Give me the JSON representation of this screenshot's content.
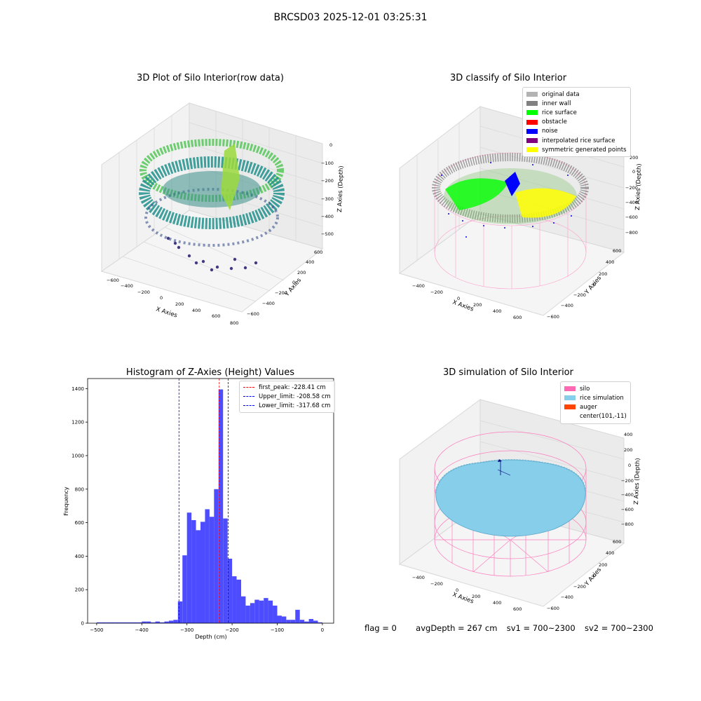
{
  "suptitle": "BRCSD03 2025-12-01 03:25:31",
  "status": {
    "flag": "flag = 0",
    "avg_depth": "avgDepth = 267 cm",
    "sv1": "sv1 = 700~2300",
    "sv2": "sv2 = 700~2300"
  },
  "chart_data": [
    {
      "type": "scatter",
      "projection": "3d",
      "title": "3D Plot of Silo Interior(row data)",
      "xlabel": "X Axies",
      "ylabel": "Y Axies",
      "zlabel": "Z Axies (Depth)",
      "x_ticks": [
        "−600",
        "−400",
        "−200",
        "0",
        "200",
        "400",
        "600",
        "800"
      ],
      "y_ticks": [
        "−600",
        "−400",
        "−200",
        "0",
        "200",
        "400",
        "600"
      ],
      "z_ticks": [
        "0",
        "−100",
        "−200",
        "−300",
        "−400",
        "−500"
      ],
      "xlim": [
        -600,
        800
      ],
      "ylim": [
        -650,
        650
      ],
      "zlim": [
        -520,
        0
      ],
      "colormap": "viridis",
      "grid": true
    },
    {
      "type": "scatter",
      "projection": "3d",
      "title": "3D classify of Silo Interior",
      "xlabel": "X Axies",
      "ylabel": "Y Axies",
      "zlabel": "Z Axies (Depth)",
      "x_ticks": [
        "−400",
        "−200",
        "0",
        "200",
        "400",
        "600"
      ],
      "y_ticks": [
        "−600",
        "−400",
        "−200",
        "0",
        "200",
        "400",
        "600"
      ],
      "z_ticks": [
        "200",
        "0",
        "−200",
        "−400",
        "−600",
        "−800"
      ],
      "legend_position": "top-right",
      "legend": [
        {
          "label": "original data",
          "color": "#b3b3b3"
        },
        {
          "label": "inner wall",
          "color": "#808080"
        },
        {
          "label": "rice surface",
          "color": "#00ff00"
        },
        {
          "label": "obstacle",
          "color": "#ff0000"
        },
        {
          "label": "noise",
          "color": "#0000ff"
        },
        {
          "label": "interpolated rice surface",
          "color": "#800080"
        },
        {
          "label": "symmetric generated points",
          "color": "#ffff00"
        }
      ],
      "grid": true
    },
    {
      "type": "bar",
      "title": "Histogram of Z-Axies (Height) Values",
      "xlabel": "Depth (cm)",
      "ylabel": "Frequency",
      "xlim": [
        -520,
        25
      ],
      "ylim": [
        0,
        1460
      ],
      "x_ticks": [
        -500,
        -400,
        -300,
        -200,
        -100,
        0
      ],
      "y_ticks": [
        0,
        200,
        400,
        600,
        800,
        1000,
        1200,
        1400
      ],
      "bin_width": 10,
      "bar_color": "#4d4dff",
      "bins": [
        {
          "x": -500,
          "y": 5
        },
        {
          "x": -490,
          "y": 5
        },
        {
          "x": -480,
          "y": 5
        },
        {
          "x": -470,
          "y": 5
        },
        {
          "x": -460,
          "y": 5
        },
        {
          "x": -450,
          "y": 5
        },
        {
          "x": -440,
          "y": 5
        },
        {
          "x": -430,
          "y": 5
        },
        {
          "x": -420,
          "y": 5
        },
        {
          "x": -410,
          "y": 5
        },
        {
          "x": -400,
          "y": 10
        },
        {
          "x": -390,
          "y": 10
        },
        {
          "x": -380,
          "y": 5
        },
        {
          "x": -370,
          "y": 10
        },
        {
          "x": -360,
          "y": 5
        },
        {
          "x": -350,
          "y": 10
        },
        {
          "x": -340,
          "y": 15
        },
        {
          "x": -330,
          "y": 20
        },
        {
          "x": -320,
          "y": 130
        },
        {
          "x": -310,
          "y": 405
        },
        {
          "x": -300,
          "y": 660
        },
        {
          "x": -290,
          "y": 615
        },
        {
          "x": -280,
          "y": 555
        },
        {
          "x": -270,
          "y": 605
        },
        {
          "x": -260,
          "y": 680
        },
        {
          "x": -250,
          "y": 635
        },
        {
          "x": -240,
          "y": 800
        },
        {
          "x": -230,
          "y": 1395
        },
        {
          "x": -220,
          "y": 625
        },
        {
          "x": -210,
          "y": 385
        },
        {
          "x": -200,
          "y": 280
        },
        {
          "x": -190,
          "y": 260
        },
        {
          "x": -180,
          "y": 160
        },
        {
          "x": -170,
          "y": 105
        },
        {
          "x": -160,
          "y": 120
        },
        {
          "x": -150,
          "y": 140
        },
        {
          "x": -140,
          "y": 135
        },
        {
          "x": -130,
          "y": 150
        },
        {
          "x": -120,
          "y": 135
        },
        {
          "x": -110,
          "y": 105
        },
        {
          "x": -100,
          "y": 45
        },
        {
          "x": -90,
          "y": 40
        },
        {
          "x": -80,
          "y": 20
        },
        {
          "x": -70,
          "y": 20
        },
        {
          "x": -60,
          "y": 80
        },
        {
          "x": -50,
          "y": 20
        },
        {
          "x": -40,
          "y": 10
        },
        {
          "x": -30,
          "y": 25
        },
        {
          "x": -20,
          "y": 15
        },
        {
          "x": -10,
          "y": 5
        }
      ],
      "vlines": [
        {
          "label": "first_peak: -228.41 cm",
          "x": -228.41,
          "color": "#ff0000"
        },
        {
          "label": "Upper_limit: -208.58 cm",
          "x": -208.58,
          "color": "#0000ff"
        },
        {
          "label": "Lower_limit: -317.68 cm",
          "x": -317.68,
          "color": "#0000ff"
        }
      ],
      "legend_position": "top-right",
      "grid": false
    },
    {
      "type": "scatter",
      "projection": "3d",
      "title": "3D simulation of Silo Interior",
      "xlabel": "X Axies",
      "ylabel": "Y Axies",
      "zlabel": "Z Axies (Depth)",
      "x_ticks": [
        "−400",
        "−200",
        "0",
        "200",
        "400",
        "600"
      ],
      "y_ticks": [
        "−600",
        "−400",
        "−200",
        "0",
        "200",
        "400",
        "600"
      ],
      "z_ticks": [
        "400",
        "200",
        "0",
        "−200",
        "−400",
        "−600",
        "−800"
      ],
      "legend_position": "top-right",
      "legend": [
        {
          "label": "silo",
          "color": "#ff69b4"
        },
        {
          "label": "rice simulation",
          "color": "#87ceeb"
        },
        {
          "label": "auger",
          "color": "#ff4500"
        },
        {
          "label": "center(101,-11)",
          "color": ""
        }
      ],
      "grid": true
    }
  ]
}
